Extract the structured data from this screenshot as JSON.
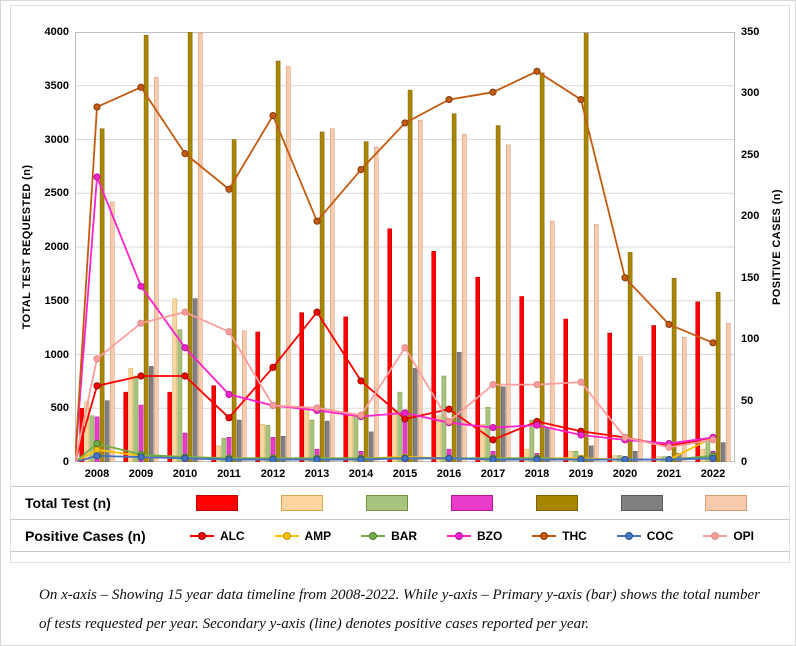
{
  "chart_data": {
    "type": "bar",
    "secondary_type": "line",
    "title": "",
    "xlabel": "",
    "ylabel_left": "TOTAL TEST REQUESTED (n)",
    "ylabel_right": "POSITIVE CASES (n)",
    "categories": [
      "2008",
      "2009",
      "2010",
      "2011",
      "2012",
      "2013",
      "2014",
      "2015",
      "2016",
      "2017",
      "2018",
      "2019",
      "2020",
      "2021",
      "2022"
    ],
    "y_left": {
      "min": 0,
      "max": 4000,
      "ticks": [
        0,
        500,
        1000,
        1500,
        2000,
        2500,
        3000,
        3500,
        4000
      ]
    },
    "y_right": {
      "min": 0,
      "max": 350,
      "ticks": [
        0,
        50,
        100,
        150,
        200,
        250,
        300,
        350
      ]
    },
    "grid": true,
    "legend_position": "bottom",
    "line_origin_zero": true,
    "bar_series": [
      {
        "name": "ALC",
        "color": "#FF0000",
        "border": "#C00000",
        "values": [
          500,
          650,
          650,
          710,
          1210,
          1390,
          1350,
          2170,
          1960,
          1720,
          1540,
          1330,
          1200,
          1270,
          1490
        ]
      },
      {
        "name": "AMP",
        "color": "#FCD5A0",
        "border": "#D6A84E",
        "values": [
          560,
          870,
          1520,
          150,
          350,
          500,
          430,
          480,
          430,
          350,
          120,
          100,
          60,
          50,
          120
        ]
      },
      {
        "name": "BAR",
        "color": "#A9C47F",
        "border": "#76933C",
        "values": [
          430,
          800,
          1230,
          220,
          340,
          390,
          430,
          650,
          800,
          510,
          390,
          100,
          60,
          50,
          220
        ]
      },
      {
        "name": "BZO",
        "color": "#E93CCB",
        "border": "#B0199E",
        "values": [
          420,
          530,
          270,
          230,
          230,
          120,
          100,
          460,
          120,
          100,
          80,
          60,
          50,
          40,
          100
        ]
      },
      {
        "name": "THC",
        "color": "#A98600",
        "border": "#7F6000",
        "values": [
          3100,
          3970,
          4000,
          3000,
          3730,
          3070,
          2980,
          3460,
          3240,
          3130,
          3620,
          3990,
          1950,
          1710,
          1580
        ]
      },
      {
        "name": "COC",
        "color": "#808080",
        "border": "#595959",
        "values": [
          570,
          890,
          1520,
          390,
          240,
          380,
          280,
          870,
          1020,
          700,
          320,
          150,
          100,
          80,
          180
        ]
      },
      {
        "name": "OPI",
        "color": "#F8CBAD",
        "border": "#D99A76",
        "values": [
          2420,
          3580,
          3990,
          1220,
          3680,
          3100,
          2930,
          3180,
          3050,
          2950,
          2240,
          2210,
          980,
          1160,
          1290
        ]
      }
    ],
    "line_series": [
      {
        "name": "ALC",
        "color": "#FF0000",
        "stroke": "#990000",
        "values": [
          62,
          70,
          70,
          36,
          77,
          122,
          66,
          35,
          43,
          18,
          33,
          25,
          20,
          13,
          20
        ]
      },
      {
        "name": "AMP",
        "color": "#FFC000",
        "stroke": "#BF8F00",
        "values": [
          10,
          5,
          4,
          3,
          3,
          3,
          3,
          4,
          3,
          3,
          3,
          3,
          2,
          2,
          20
        ]
      },
      {
        "name": "BAR",
        "color": "#70AD47",
        "stroke": "#4F7A28",
        "values": [
          15,
          6,
          4,
          3,
          3,
          3,
          3,
          3,
          3,
          3,
          3,
          2,
          2,
          2,
          5
        ]
      },
      {
        "name": "BZO",
        "color": "#FF22CE",
        "stroke": "#B0199E",
        "values": [
          232,
          143,
          93,
          55,
          46,
          42,
          37,
          40,
          32,
          28,
          30,
          22,
          18,
          15,
          20
        ]
      },
      {
        "name": "THC",
        "color": "#C55A11",
        "stroke": "#843C0C",
        "values": [
          289,
          305,
          251,
          222,
          282,
          196,
          238,
          276,
          295,
          301,
          318,
          295,
          150,
          112,
          97
        ]
      },
      {
        "name": "COC",
        "color": "#4472C4",
        "stroke": "#2F528F",
        "values": [
          5,
          4,
          3,
          2,
          2,
          2,
          2,
          3,
          3,
          2,
          2,
          2,
          2,
          2,
          3
        ]
      },
      {
        "name": "OPI",
        "color": "#FF9D9D",
        "stroke": "#D98C8C",
        "values": [
          84,
          113,
          122,
          106,
          46,
          44,
          38,
          93,
          33,
          63,
          63,
          65,
          20,
          12,
          18
        ]
      }
    ]
  },
  "legend": {
    "total_label": "Total Test (n)",
    "positive_label": "Positive Cases (n)",
    "series": [
      "ALC",
      "AMP",
      "BAR",
      "BZO",
      "THC",
      "COC",
      "OPI"
    ]
  },
  "caption": {
    "text": "On x-axis – Showing 15 year data timeline from 2008-2022. While y-axis – Primary y-axis (bar) shows the total number of tests requested per year. Secondary y-axis (line) denotes positive cases reported per year."
  }
}
